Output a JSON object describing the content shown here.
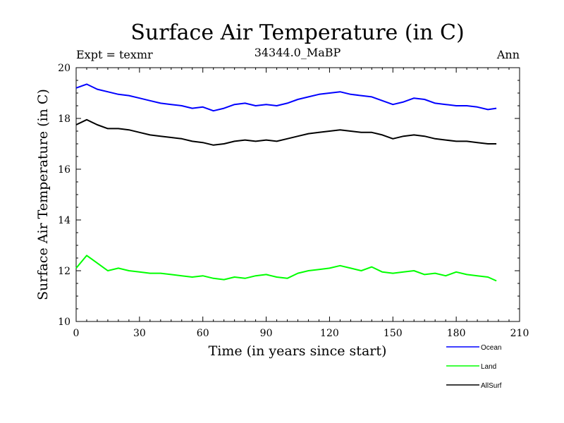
{
  "chart_data": {
    "type": "line",
    "title": "Surface Air Temperature (in C)",
    "left_label": "Expt = texmr",
    "center_label": "34344.0_MaBP",
    "right_label": "Ann",
    "xlabel": "Time (in years since start)",
    "ylabel": "Surface Air Temperature (in C)",
    "xlim": [
      0,
      210
    ],
    "ylim": [
      10,
      20
    ],
    "xticks": [
      "0",
      "30",
      "60",
      "90",
      "120",
      "150",
      "180",
      "210"
    ],
    "yticks": [
      "10",
      "12",
      "14",
      "16",
      "18",
      "20"
    ],
    "grid": false,
    "legend_position": "bottom-right",
    "x": [
      0,
      5,
      10,
      15,
      20,
      25,
      30,
      35,
      40,
      45,
      50,
      55,
      60,
      65,
      70,
      75,
      80,
      85,
      90,
      95,
      100,
      105,
      110,
      115,
      120,
      125,
      130,
      135,
      140,
      145,
      150,
      155,
      160,
      165,
      170,
      175,
      180,
      185,
      190,
      195,
      199
    ],
    "series": [
      {
        "name": "Ocean",
        "color": "#0000ff",
        "values": [
          19.2,
          19.35,
          19.15,
          19.05,
          18.95,
          18.9,
          18.8,
          18.7,
          18.6,
          18.55,
          18.5,
          18.4,
          18.45,
          18.3,
          18.4,
          18.55,
          18.6,
          18.5,
          18.55,
          18.5,
          18.6,
          18.75,
          18.85,
          18.95,
          19.0,
          19.05,
          18.95,
          18.9,
          18.85,
          18.7,
          18.55,
          18.65,
          18.8,
          18.75,
          18.6,
          18.55,
          18.5,
          18.5,
          18.45,
          18.35,
          18.4
        ]
      },
      {
        "name": "Land",
        "color": "#00ff00",
        "values": [
          12.1,
          12.6,
          12.3,
          12.0,
          12.1,
          12.0,
          11.95,
          11.9,
          11.9,
          11.85,
          11.8,
          11.75,
          11.8,
          11.7,
          11.65,
          11.75,
          11.7,
          11.8,
          11.85,
          11.75,
          11.7,
          11.9,
          12.0,
          12.05,
          12.1,
          12.2,
          12.1,
          12.0,
          12.15,
          11.95,
          11.9,
          11.95,
          12.0,
          11.85,
          11.9,
          11.8,
          11.95,
          11.85,
          11.8,
          11.75,
          11.6
        ]
      },
      {
        "name": "AllSurf",
        "color": "#000000",
        "values": [
          17.75,
          17.95,
          17.75,
          17.6,
          17.6,
          17.55,
          17.45,
          17.35,
          17.3,
          17.25,
          17.2,
          17.1,
          17.05,
          16.95,
          17.0,
          17.1,
          17.15,
          17.1,
          17.15,
          17.1,
          17.2,
          17.3,
          17.4,
          17.45,
          17.5,
          17.55,
          17.5,
          17.45,
          17.45,
          17.35,
          17.2,
          17.3,
          17.35,
          17.3,
          17.2,
          17.15,
          17.1,
          17.1,
          17.05,
          17.0,
          17.0
        ]
      }
    ]
  }
}
